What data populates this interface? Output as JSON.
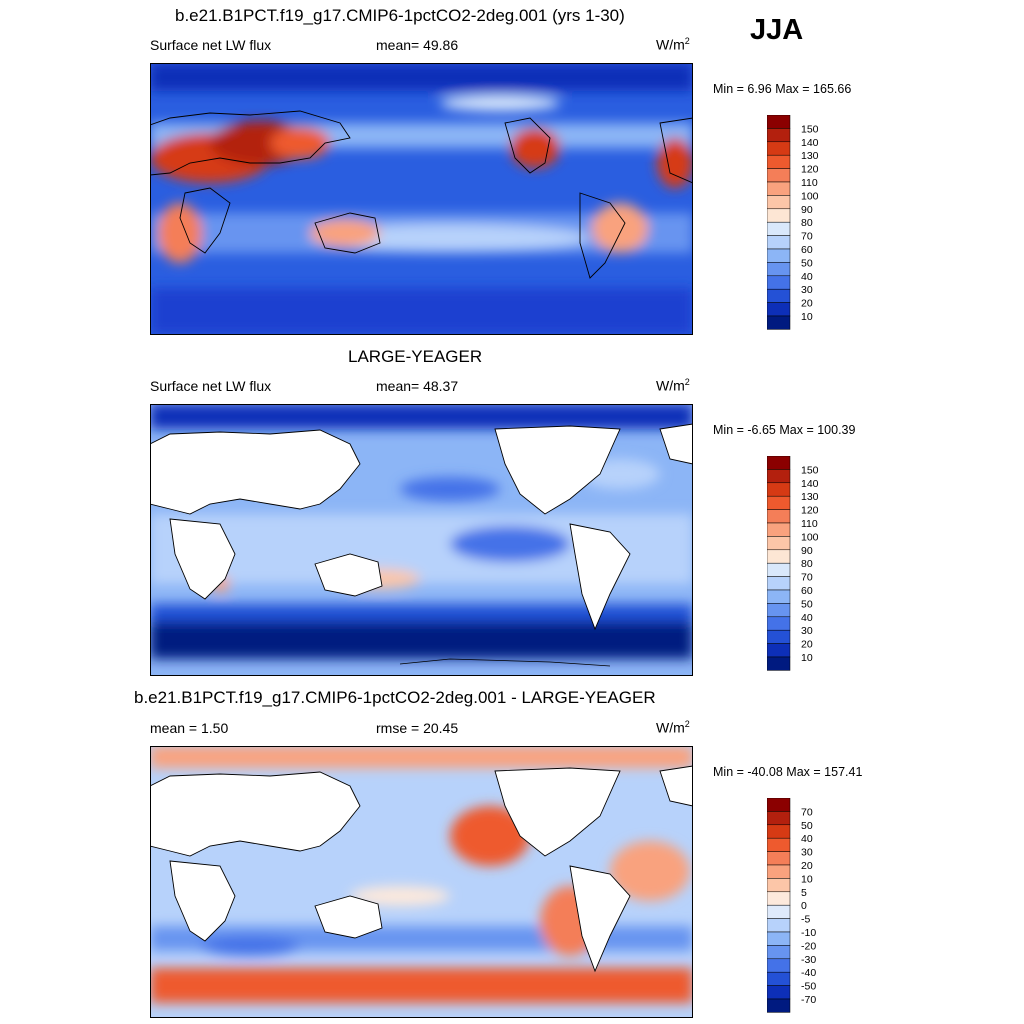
{
  "season": "JJA",
  "panels": [
    {
      "title": "b.e21.B1PCT.f19_g17.CMIP6-1pctCO2-2deg.001 (yrs 1-30)",
      "left_label": "Surface net LW flux",
      "center_label": "mean=  49.86",
      "units": "W/m",
      "units_sup": "2",
      "stats": "Min =   6.96 Max = 165.66",
      "kind": "abs",
      "masked": false
    },
    {
      "title": "LARGE-YEAGER",
      "left_label": "Surface net LW flux",
      "center_label": "mean=  48.37",
      "units": "W/m",
      "units_sup": "2",
      "stats": "Min =  -6.65 Max = 100.39",
      "kind": "abs",
      "masked": true
    },
    {
      "title": "b.e21.B1PCT.f19_g17.CMIP6-1pctCO2-2deg.001 - LARGE-YEAGER",
      "left_label": "mean =   1.50",
      "center_label": "rmse =  20.45",
      "units": "W/m",
      "units_sup": "2",
      "stats": "Min = -40.08 Max = 157.41",
      "kind": "diff",
      "masked": true
    }
  ],
  "colorbars": {
    "abs": {
      "labels": [
        "150",
        "140",
        "130",
        "120",
        "110",
        "100",
        "90",
        "80",
        "70",
        "60",
        "50",
        "40",
        "30",
        "20",
        "10"
      ],
      "colors": [
        "#8b0000",
        "#b3200e",
        "#d63a14",
        "#ee5a2e",
        "#f47e58",
        "#f9a27e",
        "#fcc6a8",
        "#fde6d4",
        "#d9e8fb",
        "#b7d2fb",
        "#8cb5f6",
        "#6794f0",
        "#4472e8",
        "#2451d6",
        "#0d2fb8",
        "#001a80"
      ]
    },
    "diff": {
      "labels": [
        "70",
        "50",
        "40",
        "30",
        "20",
        "10",
        "5",
        "0",
        "-5",
        "-10",
        "-20",
        "-30",
        "-40",
        "-50",
        "-70"
      ],
      "colors": [
        "#8b0000",
        "#b3200e",
        "#d63a14",
        "#ee5a2e",
        "#f47e58",
        "#f9a27e",
        "#fcc6a8",
        "#fde9dc",
        "#dfeafb",
        "#b7d2fb",
        "#8cb5f6",
        "#6794f0",
        "#4472e8",
        "#2451d6",
        "#0d2fb8",
        "#001a80"
      ]
    }
  }
}
